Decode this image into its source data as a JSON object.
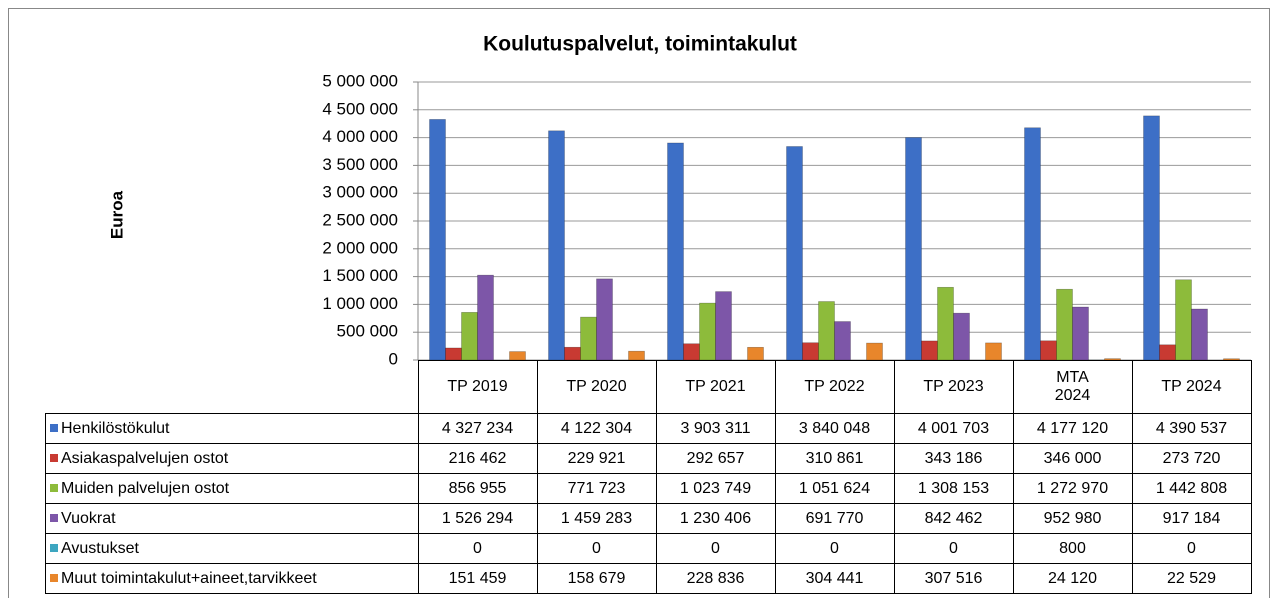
{
  "chart_data": {
    "type": "bar",
    "title": "Koulutuspalvelut, toimintakulut",
    "y_label": "Euroa",
    "categories": [
      "TP 2019",
      "TP 2020",
      "TP 2021",
      "TP 2022",
      "TP 2023",
      "MTA 2024",
      "TP 2024"
    ],
    "ylim": [
      0,
      5000000
    ],
    "yticks": [
      0,
      {
        "value": 500000,
        "label": "500 000"
      },
      {
        "value": 1000000,
        "label": "1 000 000"
      },
      {
        "value": 1500000,
        "label": "1 500 000"
      },
      {
        "value": 2000000,
        "label": "2 000 000"
      },
      {
        "value": 2500000,
        "label": "2 500 000"
      },
      {
        "value": 3000000,
        "label": "3 000 000"
      },
      {
        "value": 3500000,
        "label": "3 500 000"
      },
      {
        "value": 4000000,
        "label": "4 000 000"
      },
      {
        "value": 4500000,
        "label": "4 500 000"
      },
      {
        "value": 5000000,
        "label": "5 000 000"
      }
    ],
    "grid": true,
    "series": [
      {
        "name": "Henkilöstökulut",
        "color": "#3d6fc6",
        "values": [
          4327234,
          4122304,
          3903311,
          3840048,
          4001703,
          4177120,
          4390537
        ],
        "value_labels": [
          "4 327 234",
          "4 122 304",
          "3 903 311",
          "3 840 048",
          "4 001 703",
          "4 177 120",
          "4 390 537"
        ]
      },
      {
        "name": "Asiakaspalvelujen ostot",
        "color": "#c83a32",
        "values": [
          216462,
          229921,
          292657,
          310861,
          343186,
          346000,
          273720
        ],
        "value_labels": [
          "216 462",
          "229 921",
          "292 657",
          "310 861",
          "343 186",
          "346 000",
          "273 720"
        ]
      },
      {
        "name": "Muiden palvelujen ostot",
        "color": "#8dbb3b",
        "values": [
          856955,
          771723,
          1023749,
          1051624,
          1308153,
          1272970,
          1442808
        ],
        "value_labels": [
          "856 955",
          "771 723",
          "1 023 749",
          "1 051 624",
          "1 308 153",
          "1 272 970",
          "1 442 808"
        ]
      },
      {
        "name": "Vuokrat",
        "color": "#7d56a8",
        "values": [
          1526294,
          1459283,
          1230406,
          691770,
          842462,
          952980,
          917184
        ],
        "value_labels": [
          "1 526 294",
          "1 459 283",
          "1 230 406",
          "691 770",
          "842 462",
          "952 980",
          "917 184"
        ]
      },
      {
        "name": "Avustukset",
        "color": "#3da6c0",
        "values": [
          0,
          0,
          0,
          0,
          0,
          800,
          0
        ],
        "value_labels": [
          "0",
          "0",
          "0",
          "0",
          "0",
          "800",
          "0"
        ]
      },
      {
        "name": "Muut toimintakulut+aineet,tarvikkeet",
        "color": "#e8862b",
        "values": [
          151459,
          158679,
          228836,
          304441,
          307516,
          24120,
          22529
        ],
        "value_labels": [
          "151 459",
          "158 679",
          "228 836",
          "304 441",
          "307 516",
          "24 120",
          "22 529"
        ]
      }
    ]
  }
}
